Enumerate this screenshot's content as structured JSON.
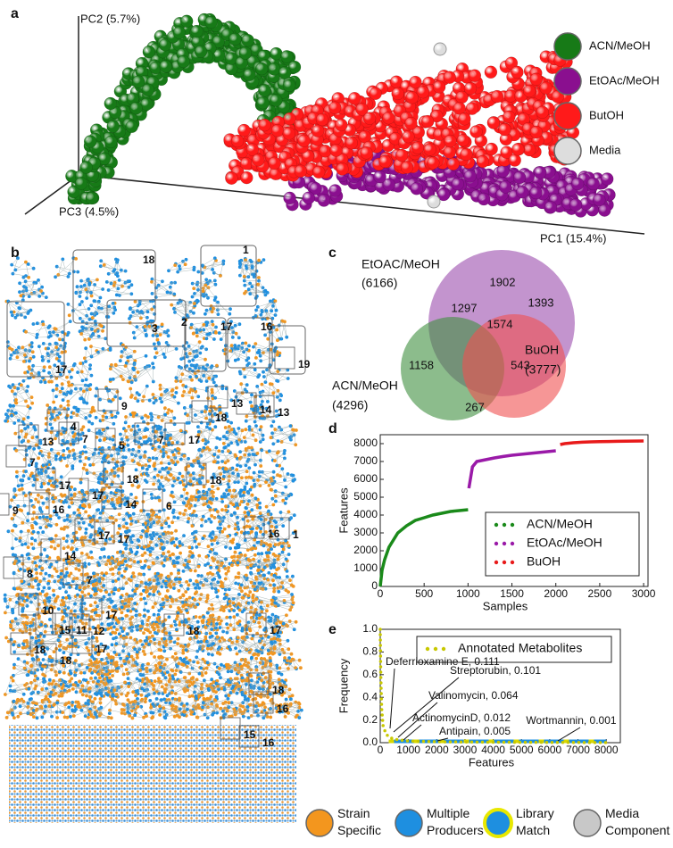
{
  "figure": {
    "panel_labels": [
      "a",
      "b",
      "c",
      "d",
      "e"
    ],
    "pca": {
      "axis_labels": [
        "PC2 (5.7%)",
        "PC3 (4.5%)",
        "PC1 (15.4%)"
      ],
      "legend": [
        {
          "name": "ACN/MeOH",
          "color": "#177a17"
        },
        {
          "name": "EtOAc/MeOH",
          "color": "#8a0f8f"
        },
        {
          "name": "ButOH",
          "color": "#ff1a1a"
        },
        {
          "name": "Media",
          "color": "#dddddd"
        }
      ]
    },
    "network": {
      "cluster_labels": [
        "18",
        "1",
        "2",
        "17",
        "3",
        "16",
        "17",
        "19",
        "9",
        "18",
        "13",
        "14",
        "13",
        "7",
        "17",
        "4",
        "7",
        "13",
        "5",
        "7",
        "18",
        "18",
        "17",
        "17",
        "16",
        "14",
        "6",
        "9",
        "17",
        "17",
        "16",
        "1",
        "14",
        "8",
        "7",
        "10",
        "17",
        "15",
        "11",
        "12",
        "18",
        "17",
        "18",
        "18",
        "17",
        "18",
        "16",
        "15",
        "16"
      ]
    },
    "venn": {
      "sets": [
        {
          "name": "EtOAC/MeOH",
          "total": "(6166)",
          "color": "#9b4dad"
        },
        {
          "name": "ACN/MeOH",
          "total": "(4296)",
          "color": "#3f8f3f"
        },
        {
          "name": "BuOH",
          "total": "(3777)",
          "color": "#f05050"
        }
      ],
      "regions": [
        1902,
        1297,
        1393,
        1574,
        1158,
        543,
        267
      ]
    },
    "legend": [
      {
        "name": "Strain Specific",
        "color": "#f3961e"
      },
      {
        "name": "Multiple Producers",
        "color": "#1e8fe0"
      },
      {
        "name": "Library Match",
        "color": "#1e8fe0",
        "ring": "#e8e800"
      },
      {
        "name": "Media Component",
        "color": "#c8c8c8"
      }
    ]
  },
  "chart_data": [
    {
      "type": "line",
      "xlabel": "Samples",
      "ylabel": "Features",
      "x": [
        0,
        20,
        50,
        100,
        200,
        300,
        400,
        500,
        600,
        700,
        800,
        900,
        1000,
        1010,
        1050,
        1100,
        1200,
        1300,
        1400,
        1500,
        1600,
        1700,
        1800,
        1900,
        2000,
        2050,
        2100,
        2200,
        2300,
        2400,
        2500,
        2600,
        2700,
        2800,
        2900,
        3000
      ],
      "series": [
        {
          "name": "ACN/MeOH",
          "color": "#1a8a1a",
          "values": [
            0,
            900,
            1500,
            2200,
            3000,
            3400,
            3700,
            3850,
            4000,
            4100,
            4200,
            4250,
            4300,
            null,
            null,
            null,
            null,
            null,
            null,
            null,
            null,
            null,
            null,
            null,
            null,
            null,
            null,
            null,
            null,
            null,
            null,
            null,
            null,
            null,
            null,
            null
          ]
        },
        {
          "name": "EtOAc/MeOH",
          "color": "#9a1aa8",
          "values": [
            null,
            null,
            null,
            null,
            null,
            null,
            null,
            null,
            null,
            null,
            null,
            null,
            null,
            5500,
            6700,
            7000,
            7100,
            7200,
            7280,
            7350,
            7400,
            7450,
            7500,
            7550,
            7600,
            null,
            null,
            null,
            null,
            null,
            null,
            null,
            null,
            null,
            null,
            null
          ]
        },
        {
          "name": "BuOH",
          "color": "#e81a1a",
          "values": [
            null,
            null,
            null,
            null,
            null,
            null,
            null,
            null,
            null,
            null,
            null,
            null,
            null,
            null,
            null,
            null,
            null,
            null,
            null,
            null,
            null,
            null,
            null,
            null,
            null,
            7950,
            8000,
            8050,
            8080,
            8100,
            8110,
            8120,
            8130,
            8140,
            8145,
            8150
          ]
        }
      ],
      "xlim": [
        0,
        3050
      ],
      "ylim": [
        0,
        8500
      ],
      "xticks": [
        0,
        500,
        1000,
        1500,
        2000,
        2500,
        3000
      ],
      "yticks": [
        0,
        1000,
        2000,
        3000,
        4000,
        5000,
        6000,
        7000,
        8000
      ],
      "legend": "lower right"
    },
    {
      "type": "line",
      "xlabel": "Features",
      "ylabel": "Frequency",
      "x": [
        0,
        20,
        50,
        100,
        200,
        300,
        500,
        1000,
        2000,
        4000,
        6000,
        8000
      ],
      "series": [
        {
          "name": "Annotated Metabolites",
          "color": "#c8c800",
          "values": [
            1.0,
            0.6,
            0.3,
            0.15,
            0.08,
            0.05,
            0.03,
            0.015,
            0.008,
            0.004,
            0.002,
            0.001
          ]
        }
      ],
      "xlim": [
        0,
        8500
      ],
      "ylim": [
        0,
        1.0
      ],
      "xticks": [
        0,
        1000,
        2000,
        3000,
        4000,
        5000,
        6000,
        7000,
        8000
      ],
      "yticks": [
        {
          "value": 0,
          "label": "0.0"
        },
        {
          "value": 0.2,
          "label": "0.2"
        },
        {
          "value": 0.4,
          "label": "0.4"
        },
        {
          "value": 0.6,
          "label": "0.6"
        },
        {
          "value": 0.8,
          "label": "0.8"
        },
        {
          "value": 1.0,
          "label": "1.0"
        }
      ],
      "annotations": [
        "Deferrioxamine E, 0.111",
        "Streptorubin, 0.101",
        "Valinomycin, 0.064",
        "ActinomycinD, 0.012",
        "Antipain, 0.005",
        "Wortmannin, 0.001"
      ],
      "legend": "upper right"
    }
  ]
}
